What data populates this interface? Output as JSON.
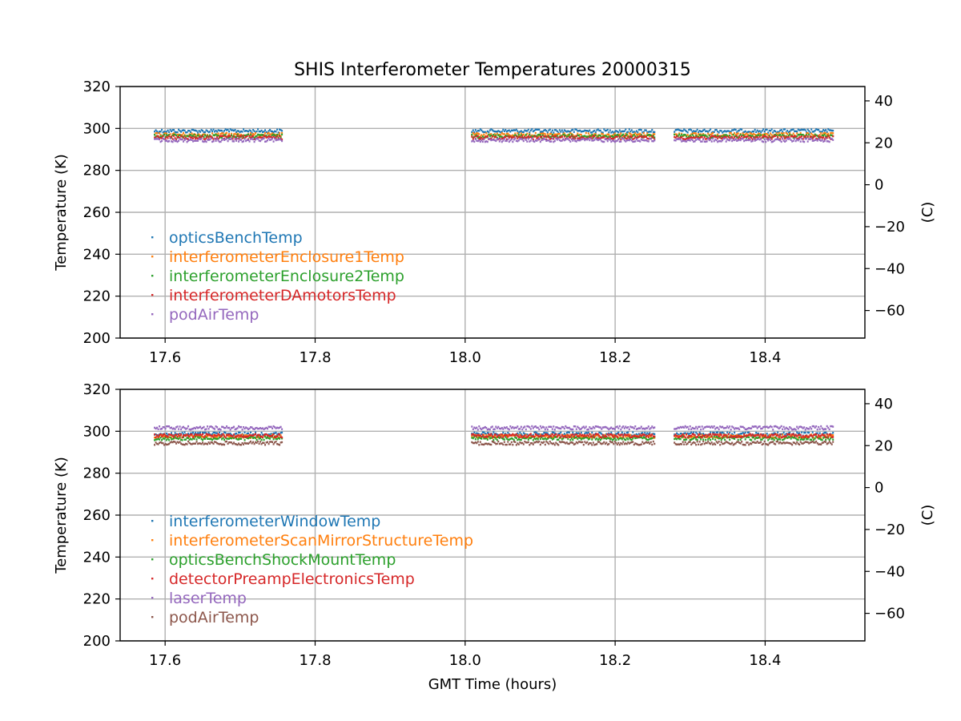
{
  "chart_data": [
    {
      "type": "scatter",
      "title": "SHIS Interferometer Temperatures 20000315",
      "xlabel": "",
      "ylabel": "Temperature (K)",
      "ylabel_right": "(C)",
      "xlim": [
        17.54,
        18.533
      ],
      "ylim": [
        200,
        320
      ],
      "ylim_right": [
        -73.15,
        46.85
      ],
      "xticks": [
        "17.6",
        "17.8",
        "18.0",
        "18.2",
        "18.4"
      ],
      "yticks": [
        "200",
        "220",
        "240",
        "260",
        "280",
        "300",
        "320"
      ],
      "yticks_right": [
        "−60",
        "−40",
        "−20",
        "0",
        "20",
        "40"
      ],
      "grid": true,
      "legend_position": "lower-left",
      "segments": [
        [
          17.585,
          17.755
        ],
        [
          18.008,
          18.252
        ],
        [
          18.278,
          18.49
        ]
      ],
      "series": [
        {
          "name": "opticsBenchTemp",
          "color": "#1f77b4",
          "value": 298.8
        },
        {
          "name": "interferometerEnclosure1Temp",
          "color": "#ff7f0e",
          "value": 297.0
        },
        {
          "name": "interferometerEnclosure2Temp",
          "color": "#2ca02c",
          "value": 296.3
        },
        {
          "name": "interferometerDAmotorsTemp",
          "color": "#d62728",
          "value": 295.6
        },
        {
          "name": "podAirTemp",
          "color": "#9467bd",
          "value": 294.4
        }
      ]
    },
    {
      "type": "scatter",
      "title": "",
      "xlabel": "GMT Time (hours)",
      "ylabel": "Temperature (K)",
      "ylabel_right": "(C)",
      "xlim": [
        17.54,
        18.533
      ],
      "ylim": [
        200,
        320
      ],
      "ylim_right": [
        -73.15,
        46.85
      ],
      "xticks": [
        "17.6",
        "17.8",
        "18.0",
        "18.2",
        "18.4"
      ],
      "yticks": [
        "200",
        "220",
        "240",
        "260",
        "280",
        "300",
        "320"
      ],
      "yticks_right": [
        "−60",
        "−40",
        "−20",
        "0",
        "20",
        "40"
      ],
      "grid": true,
      "legend_position": "lower-left",
      "segments": [
        [
          17.585,
          17.755
        ],
        [
          18.008,
          18.252
        ],
        [
          18.278,
          18.49
        ]
      ],
      "series": [
        {
          "name": "interferometerWindowTemp",
          "color": "#1f77b4",
          "value": 298.7
        },
        {
          "name": "interferometerScanMirrorStructureTemp",
          "color": "#ff7f0e",
          "value": 297.6
        },
        {
          "name": "opticsBenchShockMountTemp",
          "color": "#2ca02c",
          "value": 296.6
        },
        {
          "name": "detectorPreampElectronicsTemp",
          "color": "#d62728",
          "value": 297.9
        },
        {
          "name": "laserTemp",
          "color": "#9467bd",
          "value": 301.6
        },
        {
          "name": "podAirTemp",
          "color": "#8c564b",
          "value": 294.3
        }
      ]
    }
  ]
}
